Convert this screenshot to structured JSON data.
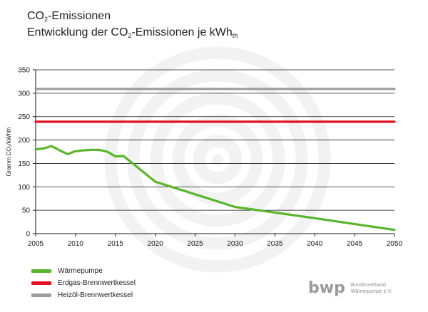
{
  "header": {
    "title_prefix": "CO",
    "title_sub": "2",
    "title_suffix": "-Emissionen",
    "subtitle_prefix": "Entwicklung der CO",
    "subtitle_sub1": "2",
    "subtitle_mid": "-Emissionen je kWh",
    "subtitle_sub2": "th"
  },
  "legend": {
    "items": [
      {
        "label": "Wärmepumpe",
        "color": "#5ab52e"
      },
      {
        "label": "Erdgas-Brennwertkessel",
        "color": "#e3101f"
      },
      {
        "label": "Heizöl-Brennwertkessel",
        "color": "#9d9d9d"
      }
    ]
  },
  "logo": {
    "word": "bwp",
    "line1": "Bundesverband",
    "line2": "Wärmepumpe e.V."
  },
  "chart_data": {
    "type": "line",
    "ylabel": "Gramm CO₂/kWhth",
    "xlim": [
      2005,
      2050
    ],
    "ylim": [
      0,
      350
    ],
    "xticks": [
      2005,
      2010,
      2015,
      2020,
      2025,
      2030,
      2035,
      2040,
      2045,
      2050
    ],
    "yticks": [
      0,
      50,
      100,
      150,
      200,
      250,
      300,
      350
    ],
    "grid": "horizontal",
    "legend_position": "bottom-left",
    "series": [
      {
        "name": "Wärmepumpe",
        "color": "#5ab52e",
        "x": [
          2005,
          2006,
          2007,
          2008,
          2009,
          2010,
          2011,
          2012,
          2013,
          2014,
          2015,
          2016,
          2020,
          2030,
          2040,
          2050
        ],
        "y": [
          180,
          182,
          187,
          178,
          170,
          176,
          178,
          179,
          179,
          175,
          165,
          166,
          111,
          57,
          33,
          8
        ]
      },
      {
        "name": "Erdgas-Brennwertkessel",
        "color": "#e3101f",
        "x": [
          2005,
          2050
        ],
        "y": [
          239,
          239
        ]
      },
      {
        "name": "Heizöl-Brennwertkessel",
        "color": "#9d9d9d",
        "x": [
          2005,
          2050
        ],
        "y": [
          309,
          309
        ]
      }
    ]
  }
}
